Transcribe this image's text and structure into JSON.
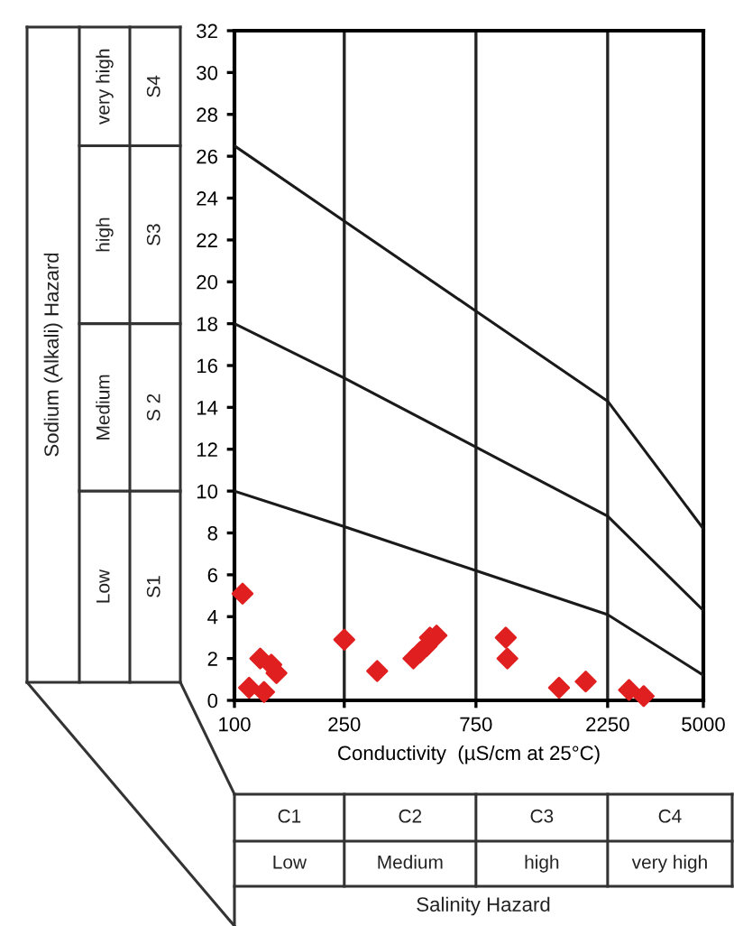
{
  "chart_data": {
    "type": "scatter",
    "xlabel": "Conductivity  (µS/cm at 25°C)",
    "log": "x",
    "xlim": [
      100,
      5000
    ],
    "xticks": [
      100,
      250,
      750,
      2250,
      5000
    ],
    "ylim": [
      0,
      32
    ],
    "yticks": [
      0,
      2,
      4,
      6,
      8,
      10,
      12,
      14,
      16,
      18,
      20,
      22,
      24,
      26,
      28,
      30,
      32
    ],
    "grid": "x",
    "series": [
      {
        "marker": "diamond",
        "color": "#e02020",
        "x": [
          107,
          113,
          124,
          128,
          136,
          142,
          250,
          329,
          445,
          470,
          497,
          511,
          540,
          962,
          975,
          1500,
          1874,
          2690,
          3040
        ],
        "values": [
          5.1,
          0.6,
          2.0,
          0.4,
          1.7,
          1.3,
          2.9,
          1.4,
          2.0,
          2.3,
          2.6,
          3.0,
          3.1,
          3.0,
          2.0,
          0.6,
          0.9,
          0.5,
          0.2
        ]
      },
      {
        "type": "line",
        "color": "#1a1a1a",
        "x": [
          100,
          250,
          750,
          2250,
          5000
        ],
        "values": [
          10,
          8.3,
          6.2,
          4.1,
          1.2
        ]
      },
      {
        "type": "line",
        "color": "#1a1a1a",
        "x": [
          100,
          250,
          750,
          2250,
          5000
        ],
        "values": [
          18,
          15.4,
          12.1,
          8.8,
          4.3
        ]
      },
      {
        "type": "line",
        "color": "#1a1a1a",
        "x": [
          100,
          250,
          750,
          2250,
          5000
        ],
        "values": [
          26.5,
          22.9,
          18.6,
          14.3,
          8.2
        ]
      }
    ],
    "annotations": [
      "Sodium (Alkali) Hazard",
      "very high",
      "S4",
      "high",
      "S3",
      "Medium",
      "S 2",
      "Low",
      "S1",
      "C1",
      "C2",
      "C3",
      "C4",
      "Low",
      "Medium",
      "high",
      "very high",
      "Salinity Hazard"
    ]
  }
}
